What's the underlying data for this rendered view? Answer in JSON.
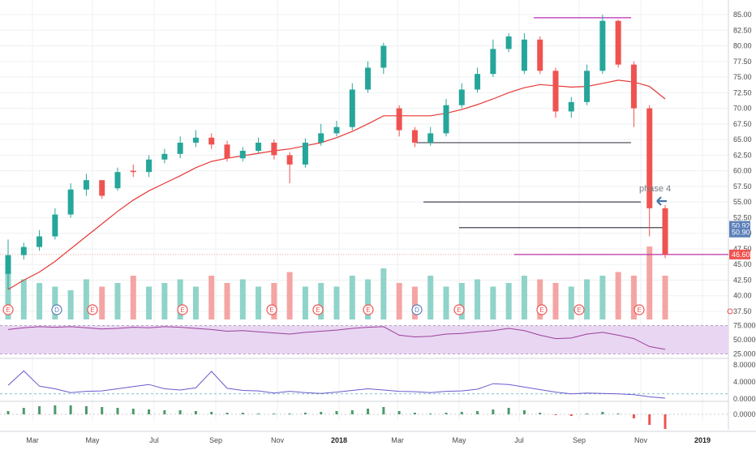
{
  "colors": {
    "up": "#26a69a",
    "down": "#ef5350",
    "ma": "#e53935",
    "level": "#434651",
    "target": "#b42db4",
    "vol_up": "#8fd3c9",
    "vol_down": "#f4a5a3",
    "rsi_line": "#9c3f9c",
    "rsi_band": "#e9d6f2",
    "stoch_line": "#6a5acd",
    "badge_blue": "#5b7fb8",
    "badge_red": "#ef5350",
    "grid": "#eef0f3",
    "arrow": "#4a78a8"
  },
  "price_axis": {
    "ticks": [
      "85.00",
      "82.50",
      "80.00",
      "77.50",
      "75.00",
      "72.50",
      "70.00",
      "67.50",
      "65.00",
      "62.50",
      "60.00",
      "57.50",
      "55.00",
      "52.50",
      "50.00",
      "47.50",
      "45.00",
      "42.50",
      "40.00",
      "37.50"
    ]
  },
  "price_badges": [
    {
      "label": "50.92",
      "value": 50.92,
      "tone": "badge_blue"
    },
    {
      "label": "50.90",
      "value": 50.9,
      "tone": "badge_blue"
    },
    {
      "label": "46.60",
      "value": 46.6,
      "tone": "badge_red"
    }
  ],
  "rsi_axis": {
    "ticks": [
      "75.0000",
      "50.0000",
      "25.0000"
    ]
  },
  "stoch_axis": {
    "ticks": [
      "8.0000",
      "4.0000",
      "0.0000"
    ]
  },
  "hist_axis": {
    "ticks": [
      "0.0000"
    ]
  },
  "time_axis": {
    "labels": [
      "Mar",
      "May",
      "Jul",
      "Sep",
      "Nov",
      "2018",
      "Mar",
      "May",
      "Jul",
      "Sep",
      "Nov",
      "2019"
    ]
  },
  "annotation": {
    "text": "phase 4"
  },
  "event_markers": [
    "E",
    "D",
    "E",
    "E",
    "E",
    "E",
    "E",
    "D",
    "E",
    "E",
    "E",
    "E"
  ],
  "chart_data": {
    "type": "candlestick",
    "title": "",
    "ylim": [
      36.5,
      86
    ],
    "series": [
      {
        "name": "",
        "x": [
          "2017-02",
          "2017-03",
          "2017-03",
          "2017-04",
          "2017-04",
          "2017-05",
          "2017-05",
          "2017-06",
          "2017-06",
          "2017-07",
          "2017-07",
          "2017-08",
          "2017-08",
          "2017-09",
          "2017-09",
          "2017-10",
          "2017-10",
          "2017-11",
          "2017-11",
          "2017-12",
          "2017-12",
          "2018-01",
          "2018-01",
          "2018-02",
          "2018-02",
          "2018-03",
          "2018-03",
          "2018-04",
          "2018-04",
          "2018-05",
          "2018-05",
          "2018-06",
          "2018-06",
          "2018-07",
          "2018-07",
          "2018-08",
          "2018-08",
          "2018-09",
          "2018-09",
          "2018-10",
          "2018-10",
          "2018-11",
          "2018-11"
        ],
        "open": [
          43.5,
          46.5,
          47.8,
          49.5,
          53,
          57,
          58.5,
          57.2,
          60,
          59.8,
          61.8,
          62.7,
          64.5,
          65.3,
          64.2,
          62,
          63.2,
          64.5,
          62.5,
          61,
          64.5,
          66,
          67,
          73,
          76.5,
          70,
          66.5,
          64.5,
          66,
          70.5,
          73,
          75.5,
          79.5,
          76,
          81,
          76,
          69.5,
          71,
          76,
          84,
          77,
          70,
          54
        ],
        "close": [
          46.5,
          47.8,
          49.5,
          53,
          57,
          58.5,
          56,
          59.8,
          59.8,
          61.8,
          62.7,
          64.5,
          65.3,
          64.2,
          62,
          63.2,
          64.5,
          62.5,
          61,
          64.5,
          66,
          67,
          73,
          76.5,
          80,
          66.5,
          64.5,
          66,
          70.5,
          73,
          75.5,
          79.5,
          81.5,
          81,
          76,
          69.5,
          71,
          76,
          84,
          77,
          70,
          54,
          46.6
        ],
        "high": [
          49,
          48.5,
          50.5,
          54,
          58,
          59.5,
          58.5,
          60.5,
          61,
          62.5,
          63.5,
          65.5,
          66.5,
          66,
          64.8,
          63.8,
          65.3,
          65,
          63,
          65.2,
          67.5,
          68,
          74,
          77.5,
          80.5,
          70.5,
          67,
          67,
          71.5,
          74,
          76.5,
          81,
          82,
          82,
          81.5,
          76.5,
          71.8,
          77,
          85,
          84.2,
          77.5,
          70.5,
          54.5
        ],
        "low": [
          41,
          45.8,
          47.2,
          49,
          52.5,
          56,
          55.5,
          56.8,
          59,
          59,
          61.2,
          62,
          63.8,
          63.5,
          61.5,
          61.5,
          62.8,
          61.8,
          58,
          60.5,
          64,
          65.5,
          66.5,
          72.5,
          75.5,
          65.5,
          63.8,
          64,
          65.5,
          70,
          72.5,
          75,
          79,
          75.5,
          75.5,
          68.5,
          68.5,
          70.5,
          75.5,
          76.5,
          67,
          49.5,
          46
        ]
      },
      {
        "name": "",
        "values": [
          41,
          42.5,
          43.8,
          45.5,
          47.5,
          49.5,
          51.5,
          53.5,
          55.3,
          56.8,
          58,
          59.2,
          60.5,
          61.5,
          62,
          62.4,
          62.8,
          63.2,
          63.5,
          64,
          64.5,
          65.3,
          66.3,
          67.5,
          68.8,
          68.8,
          68.8,
          68.8,
          69.2,
          69.8,
          70.6,
          71.5,
          72.5,
          73.3,
          73.8,
          73.6,
          73.4,
          73.5,
          74,
          74.5,
          74.2,
          73.5,
          71.5
        ]
      }
    ],
    "levels": [
      {
        "value": 84.5,
        "tone": "target"
      },
      {
        "value": 64.5,
        "tone": "level"
      },
      {
        "value": 55,
        "tone": "level"
      },
      {
        "value": 50.9,
        "tone": "level"
      },
      {
        "value": 46.6,
        "tone": "target"
      }
    ],
    "volume": [
      0.85,
      0.55,
      0.5,
      0.45,
      0.4,
      0.55,
      0.45,
      0.5,
      0.6,
      0.45,
      0.5,
      0.55,
      0.45,
      0.6,
      0.5,
      0.55,
      0.45,
      0.5,
      0.65,
      0.45,
      0.5,
      0.45,
      0.6,
      0.55,
      0.7,
      0.5,
      0.45,
      0.6,
      0.45,
      0.5,
      0.55,
      0.45,
      0.5,
      0.6,
      0.55,
      0.5,
      0.45,
      0.55,
      0.6,
      0.65,
      0.6,
      1.0,
      0.6
    ],
    "rsi": [
      68,
      71,
      73,
      72,
      73,
      71,
      69,
      70,
      72,
      71,
      73,
      72,
      70,
      68,
      65,
      66,
      64,
      62,
      60,
      63,
      65,
      67,
      70,
      72,
      73,
      58,
      55,
      56,
      60,
      61,
      64,
      66,
      70,
      66,
      58,
      52,
      53,
      60,
      63,
      58,
      52,
      38,
      33
    ],
    "stoch": [
      3.2,
      6.6,
      3.0,
      2.4,
      1.5,
      1.8,
      1.9,
      2.4,
      2.9,
      3.4,
      2.4,
      2.1,
      2.6,
      6.5,
      2.5,
      2.0,
      1.9,
      1.4,
      1.8,
      1.5,
      1.3,
      1.6,
      2.0,
      2.4,
      2.1,
      1.8,
      1.7,
      1.5,
      1.8,
      1.9,
      2.3,
      3.6,
      3.4,
      2.8,
      2.2,
      1.6,
      1.2,
      1.4,
      1.3,
      1.2,
      1.0,
      0.5,
      0.2
    ],
    "hist": [
      0.4,
      0.8,
      1.0,
      1.1,
      1.1,
      1.0,
      0.9,
      0.8,
      0.7,
      0.6,
      0.5,
      0.5,
      0.4,
      0.3,
      0.2,
      0.2,
      0.1,
      0.1,
      0.1,
      0.2,
      0.3,
      0.4,
      0.5,
      0.7,
      0.9,
      0.4,
      0.2,
      0.1,
      0.2,
      0.3,
      0.4,
      0.6,
      0.8,
      0.5,
      0.2,
      -0.1,
      -0.2,
      0.1,
      0.3,
      0.1,
      -0.5,
      -1.3,
      -1.8
    ]
  }
}
